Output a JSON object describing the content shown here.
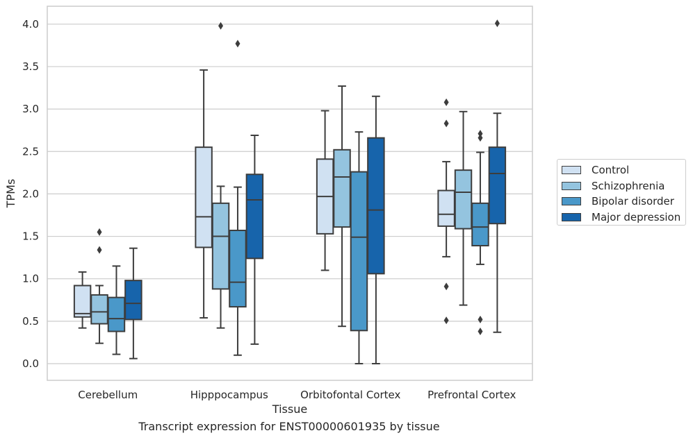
{
  "caption": "Transcript expression for ENST00000601935 by tissue",
  "chart_data": {
    "type": "boxplot",
    "xlabel": "Tissue",
    "ylabel": "TPMs",
    "ylim": [
      -0.2,
      4.22
    ],
    "yticks": [
      "0.0",
      "0.5",
      "1.0",
      "1.5",
      "2.0",
      "2.5",
      "3.0",
      "3.5",
      "4.0"
    ],
    "grid": "horizontal",
    "legend_position": "right",
    "categories": [
      "Cerebellum",
      "Hipppocampus",
      "Orbitofontal Cortex",
      "Prefrontal Cortex"
    ],
    "series": [
      {
        "name": "Control",
        "color": "#d0e1f2",
        "boxes": [
          {
            "whisker_low": 0.42,
            "q1": 0.55,
            "median": 0.59,
            "q3": 0.92,
            "whisker_high": 1.08,
            "outliers": []
          },
          {
            "whisker_low": 0.54,
            "q1": 1.37,
            "median": 1.73,
            "q3": 2.55,
            "whisker_high": 3.46,
            "outliers": []
          },
          {
            "whisker_low": 1.1,
            "q1": 1.53,
            "median": 1.97,
            "q3": 2.41,
            "whisker_high": 2.98,
            "outliers": []
          },
          {
            "whisker_low": 1.26,
            "q1": 1.62,
            "median": 1.76,
            "q3": 2.04,
            "whisker_high": 2.38,
            "outliers": [
              3.08,
              2.83,
              0.91,
              0.51
            ]
          }
        ]
      },
      {
        "name": "Schizophrenia",
        "color": "#94c4df",
        "boxes": [
          {
            "whisker_low": 0.24,
            "q1": 0.47,
            "median": 0.61,
            "q3": 0.81,
            "whisker_high": 0.92,
            "outliers": [
              1.55,
              1.34
            ]
          },
          {
            "whisker_low": 0.42,
            "q1": 0.88,
            "median": 1.5,
            "q3": 1.89,
            "whisker_high": 2.09,
            "outliers": [
              3.98
            ]
          },
          {
            "whisker_low": 0.44,
            "q1": 1.61,
            "median": 2.2,
            "q3": 2.52,
            "whisker_high": 3.27,
            "outliers": []
          },
          {
            "whisker_low": 0.69,
            "q1": 1.59,
            "median": 2.02,
            "q3": 2.28,
            "whisker_high": 2.97,
            "outliers": []
          }
        ]
      },
      {
        "name": "Bipolar disorder",
        "color": "#4a98c9",
        "boxes": [
          {
            "whisker_low": 0.11,
            "q1": 0.38,
            "median": 0.53,
            "q3": 0.78,
            "whisker_high": 1.15,
            "outliers": []
          },
          {
            "whisker_low": 0.1,
            "q1": 0.67,
            "median": 0.96,
            "q3": 1.57,
            "whisker_high": 2.08,
            "outliers": [
              3.77
            ]
          },
          {
            "whisker_low": 0.0,
            "q1": 0.39,
            "median": 1.49,
            "q3": 2.26,
            "whisker_high": 2.73,
            "outliers": []
          },
          {
            "whisker_low": 1.17,
            "q1": 1.39,
            "median": 1.61,
            "q3": 1.89,
            "whisker_high": 2.49,
            "outliers": [
              2.71,
              2.66,
              0.52,
              0.38
            ]
          }
        ]
      },
      {
        "name": "Major depression",
        "color": "#1764ab",
        "boxes": [
          {
            "whisker_low": 0.06,
            "q1": 0.52,
            "median": 0.71,
            "q3": 0.98,
            "whisker_high": 1.36,
            "outliers": []
          },
          {
            "whisker_low": 0.23,
            "q1": 1.24,
            "median": 1.93,
            "q3": 2.23,
            "whisker_high": 2.69,
            "outliers": []
          },
          {
            "whisker_low": 0.0,
            "q1": 1.06,
            "median": 1.81,
            "q3": 2.66,
            "whisker_high": 3.15,
            "outliers": []
          },
          {
            "whisker_low": 0.37,
            "q1": 1.65,
            "median": 2.24,
            "q3": 2.55,
            "whisker_high": 2.95,
            "outliers": [
              4.01
            ]
          }
        ]
      }
    ]
  }
}
